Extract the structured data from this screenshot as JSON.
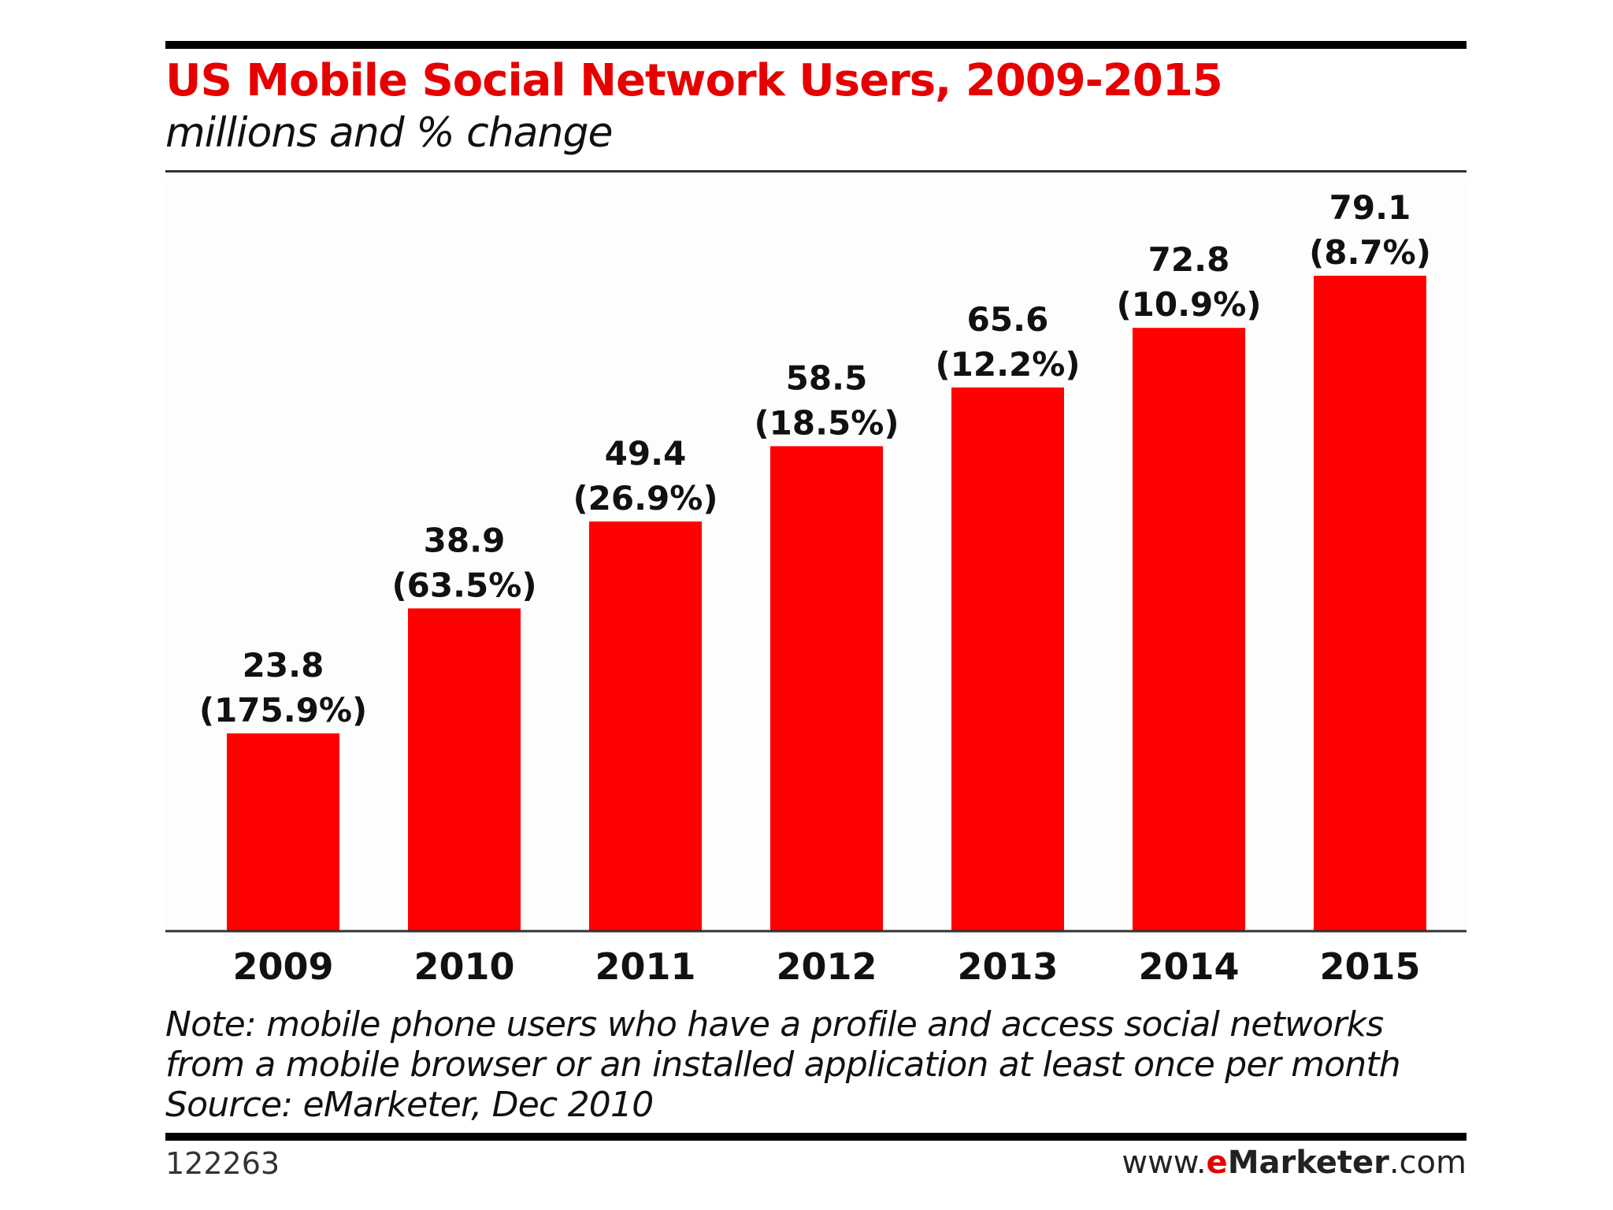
{
  "header": {
    "title": "US Mobile Social Network Users, 2009-2015",
    "subtitle": "millions and % change"
  },
  "notes": {
    "note_line_1": "Note: mobile phone users who have a profile and access social networks",
    "note_line_2": "from a mobile browser or an installed application at least once per month",
    "source": "Source: eMarketer, Dec 2010"
  },
  "footer": {
    "chart_id": "122263",
    "brand_prefix": "www.",
    "brand_e": "e",
    "brand_name": "Marketer",
    "brand_suffix": ".com"
  },
  "colors": {
    "title": "#e60000",
    "bar": "#ff0000",
    "text": "#111111",
    "brand_accent": "#e60000"
  },
  "chart_data": {
    "type": "bar",
    "title": "US Mobile Social Network Users, 2009-2015",
    "subtitle": "millions and % change",
    "xlabel": "",
    "ylabel": "",
    "categories": [
      "2009",
      "2010",
      "2011",
      "2012",
      "2013",
      "2014",
      "2015"
    ],
    "values": [
      23.8,
      38.9,
      49.4,
      58.5,
      65.6,
      72.8,
      79.1
    ],
    "percent_change": [
      "175.9%",
      "63.5%",
      "26.9%",
      "18.5%",
      "12.2%",
      "10.9%",
      "8.7%"
    ],
    "value_labels": [
      "23.8",
      "38.9",
      "49.4",
      "58.5",
      "65.6",
      "72.8",
      "79.1"
    ],
    "percent_labels": [
      "(175.9%)",
      "(63.5%)",
      "(26.9%)",
      "(18.5%)",
      "(12.2%)",
      "(10.9%)",
      "(8.7%)"
    ],
    "ylim": [
      0,
      79.1
    ],
    "grid": false,
    "legend": "none"
  }
}
